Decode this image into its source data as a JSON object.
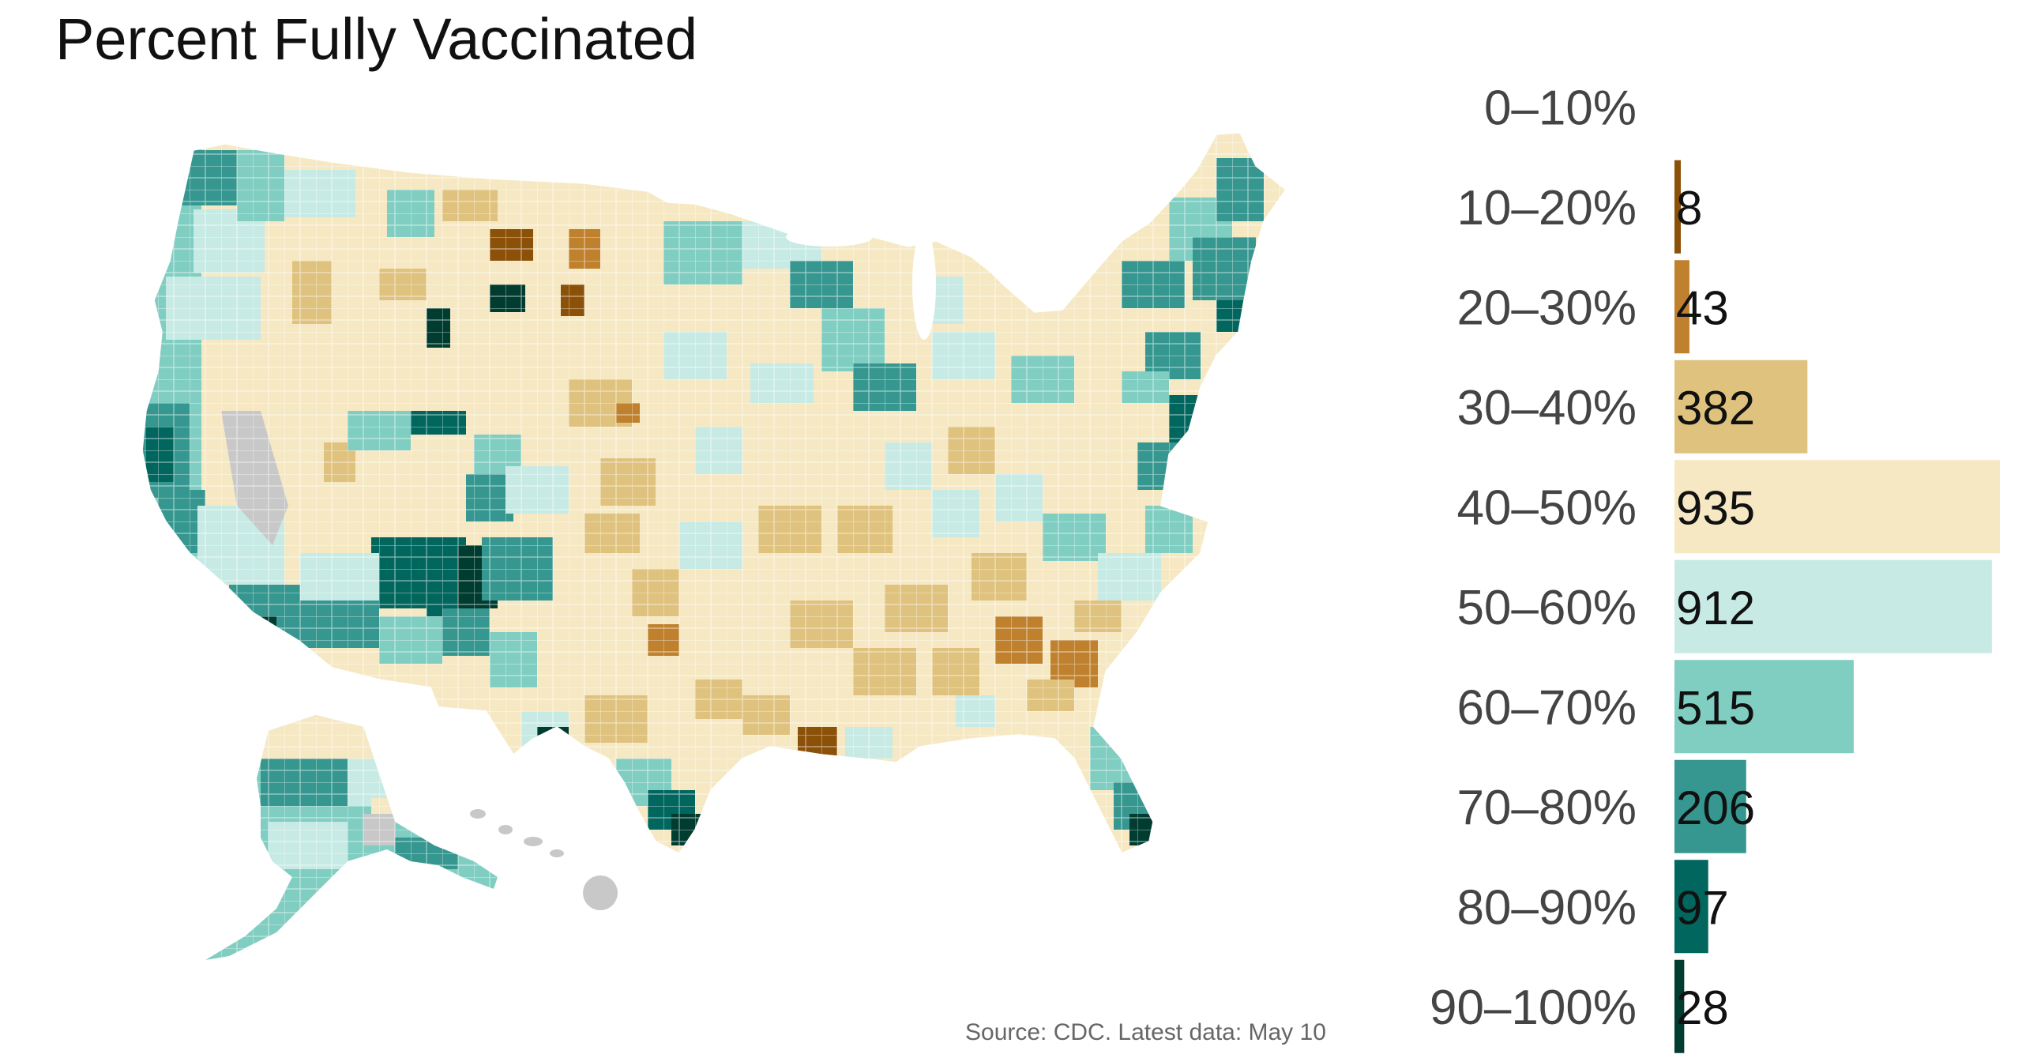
{
  "title": "Percent Fully Vaccinated",
  "source": "Source: CDC. Latest data: May 10",
  "chart_data": {
    "type": "bar",
    "orientation": "horizontal",
    "description_kind": "county choropleth map with histogram legend",
    "categories": [
      "0–10%",
      "10–20%",
      "20–30%",
      "30–40%",
      "40–50%",
      "50–60%",
      "60–70%",
      "70–80%",
      "80–90%",
      "90–100%"
    ],
    "values": [
      0,
      8,
      43,
      382,
      935,
      912,
      515,
      206,
      97,
      28
    ],
    "value_labels": [
      "",
      "8",
      "43",
      "382",
      "935",
      "912",
      "515",
      "206",
      "97",
      "28"
    ],
    "colors": [
      "#8c5109",
      "#8c5109",
      "#bf812d",
      "#dfc27d",
      "#f6e8c3",
      "#c7eae5",
      "#80cdc1",
      "#35978f",
      "#01665e",
      "#003c30"
    ],
    "no_data_color": "#c8c8c8",
    "xlim": [
      0,
      935
    ]
  }
}
